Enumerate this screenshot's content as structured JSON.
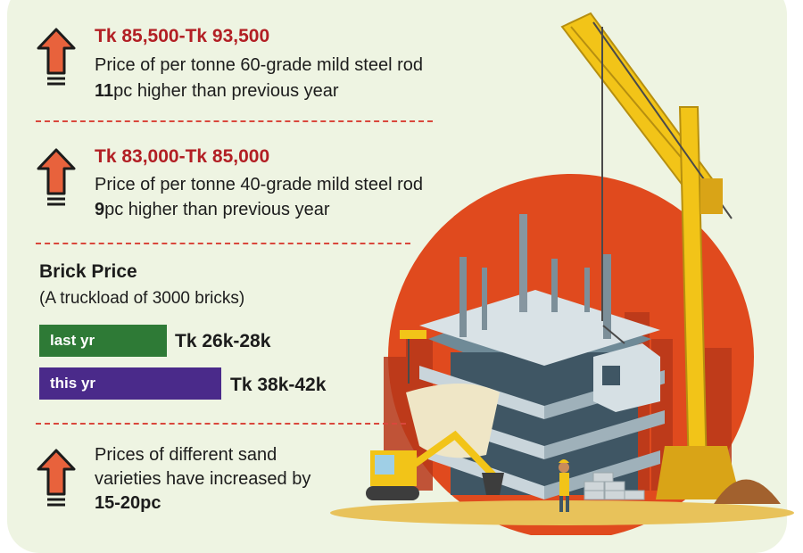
{
  "steel_60": {
    "price": "Tk 85,500-Tk 93,500",
    "desc": "Price of per tonne 60-grade mild steel rod",
    "change_value": "11",
    "change_text": "pc higher than previous year"
  },
  "steel_40": {
    "price": "Tk 83,000-Tk 85,000",
    "desc": "Price of per tonne 40-grade mild steel rod",
    "change_value": "9",
    "change_text": "pc higher than previous year"
  },
  "brick": {
    "heading": "Brick Price",
    "subheading": "(A truckload of 3000 bricks)",
    "bars": [
      {
        "label": "last yr",
        "value": "Tk 26k-28k",
        "color": "#2e7a36"
      },
      {
        "label": "this yr",
        "value": "Tk 38k-42k",
        "color": "#4a2a8a"
      }
    ]
  },
  "sand": {
    "line1": "Prices of different sand",
    "line2": "varieties have increased by",
    "line3": "15-20pc"
  },
  "colors": {
    "accent_red": "#b21f24",
    "arrow_orange": "#e8623c",
    "dash_red": "#d9473c",
    "sun_orange": "#e04a1e",
    "crane_yellow": "#f2c418"
  }
}
